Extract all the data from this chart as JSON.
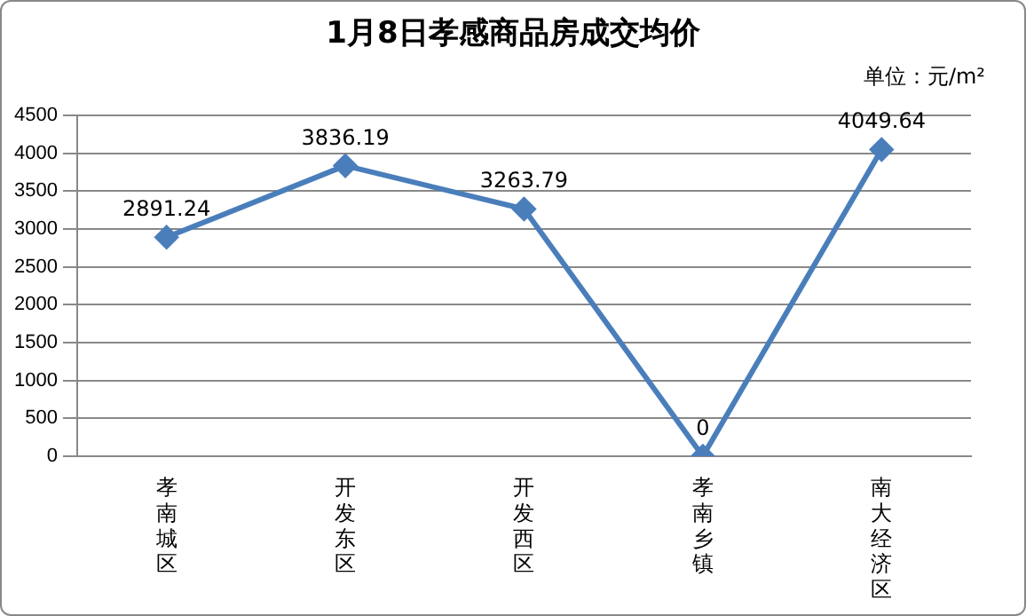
{
  "chart_data": {
    "type": "line",
    "title": "1月8日孝感商品房成交均价",
    "annotations": [
      "单位：元/m²"
    ],
    "categories": [
      "孝南城区",
      "开发东区",
      "开发西区",
      "孝南乡镇",
      "南大经济区"
    ],
    "series": [
      {
        "color": "#4a7ebb",
        "values": [
          2891.24,
          3836.19,
          3263.79,
          0,
          4049.64
        ]
      }
    ],
    "ylim": [
      0,
      4500
    ],
    "yticks": [
      0,
      500,
      1000,
      1500,
      2000,
      2500,
      3000,
      3500,
      4000,
      4500
    ],
    "grid": "y",
    "legend": false,
    "marker": "diamond",
    "line_style": "solid",
    "data_labels": true
  }
}
